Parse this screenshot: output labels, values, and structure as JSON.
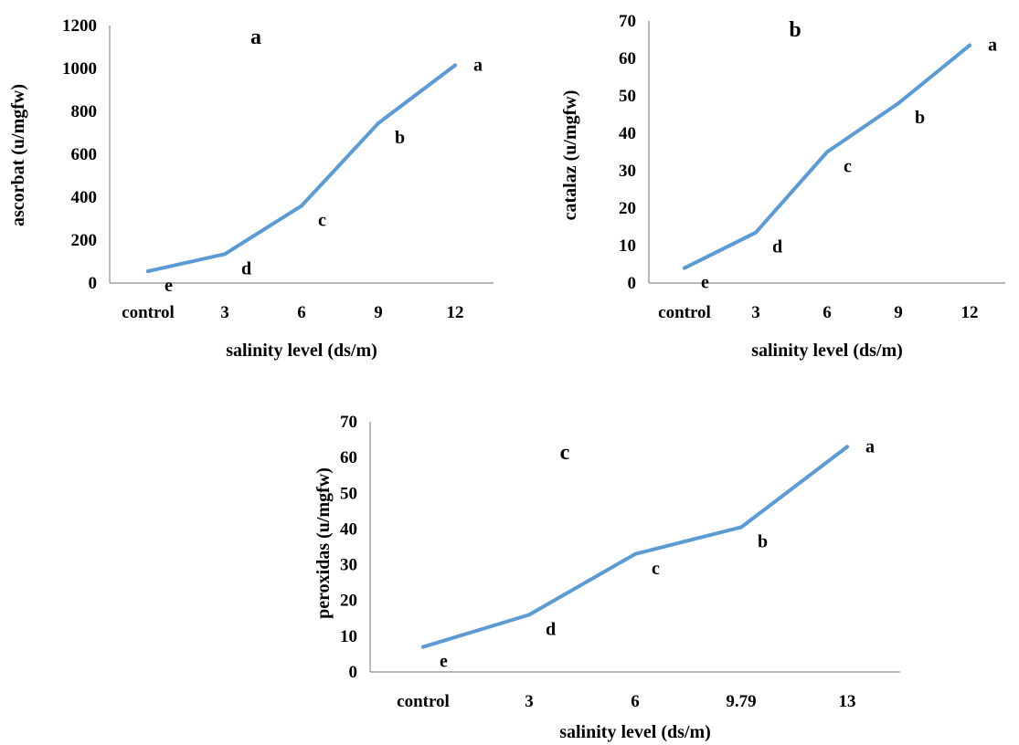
{
  "line_color": "#5b9bd5",
  "chart_data": [
    {
      "type": "line",
      "title": "a",
      "categories": [
        "control",
        "3",
        "6",
        "9",
        "12"
      ],
      "values": [
        55,
        135,
        360,
        745,
        1015
      ],
      "point_labels": [
        "e",
        "d",
        "c",
        "b",
        "a"
      ],
      "xlabel": "salinity level (ds/m)",
      "ylabel": "ascorbat (u/mgfw)",
      "ylim": [
        0,
        1200
      ],
      "yticks": [
        "0",
        "200",
        "400",
        "600",
        "800",
        "1000",
        "1200"
      ],
      "grid": false
    },
    {
      "type": "line",
      "title": "b",
      "categories": [
        "control",
        "3",
        "6",
        "9",
        "12"
      ],
      "values": [
        4,
        13.5,
        35,
        48,
        63.5
      ],
      "point_labels": [
        "e",
        "d",
        "c",
        "b",
        "a"
      ],
      "xlabel": "salinity level (ds/m)",
      "ylabel": "catalaz (u/mgfw)",
      "ylim": [
        0,
        70
      ],
      "yticks": [
        "0",
        "10",
        "20",
        "30",
        "40",
        "50",
        "60",
        "70"
      ],
      "grid": false
    },
    {
      "type": "line",
      "title": "c",
      "categories": [
        "control",
        "3",
        "6",
        "9.79",
        "13"
      ],
      "values": [
        7,
        16,
        33,
        40.5,
        63
      ],
      "point_labels": [
        "e",
        "d",
        "c",
        "b",
        "a"
      ],
      "xlabel": "salinity level (ds/m)",
      "ylabel": "peroxidas (u/mgfw)",
      "ylim": [
        0,
        70
      ],
      "yticks": [
        "0",
        "10",
        "20",
        "30",
        "40",
        "50",
        "60",
        "70"
      ],
      "grid": false
    }
  ]
}
